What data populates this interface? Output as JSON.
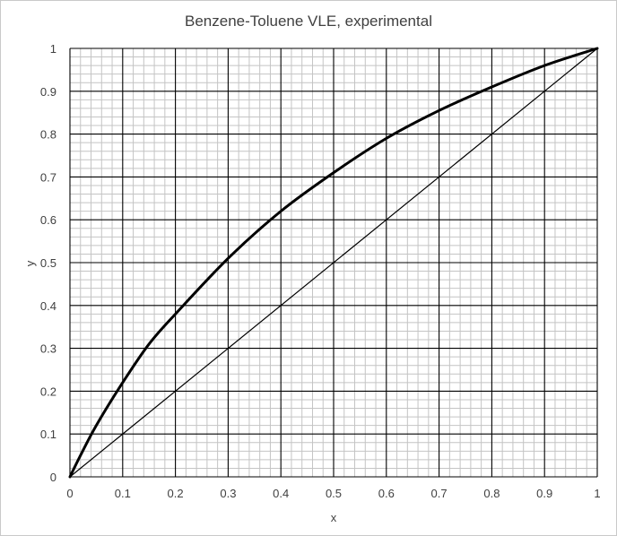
{
  "chart_data": {
    "type": "line",
    "title": "Benzene-Toluene VLE, experimental",
    "xlabel": "x",
    "ylabel": "y",
    "xlim": [
      0,
      1
    ],
    "ylim": [
      0,
      1
    ],
    "x_ticks": [
      "0",
      "0.1",
      "0.2",
      "0.3",
      "0.4",
      "0.5",
      "0.6",
      "0.7",
      "0.8",
      "0.9",
      "1"
    ],
    "y_ticks": [
      "0",
      "0.1",
      "0.2",
      "0.3",
      "0.4",
      "0.5",
      "0.6",
      "0.7",
      "0.8",
      "0.9",
      "1"
    ],
    "grid": "major and minor",
    "legend": "none",
    "series": [
      {
        "style": "thick",
        "color": "#000000",
        "x": [
          0,
          0.02,
          0.05,
          0.1,
          0.15,
          0.2,
          0.3,
          0.4,
          0.5,
          0.6,
          0.7,
          0.8,
          0.9,
          1
        ],
        "y": [
          0,
          0.05,
          0.12,
          0.22,
          0.31,
          0.38,
          0.51,
          0.62,
          0.71,
          0.79,
          0.855,
          0.91,
          0.96,
          1
        ]
      },
      {
        "style": "thin",
        "color": "#000000",
        "x": [
          0,
          1
        ],
        "y": [
          0,
          1
        ]
      }
    ]
  }
}
